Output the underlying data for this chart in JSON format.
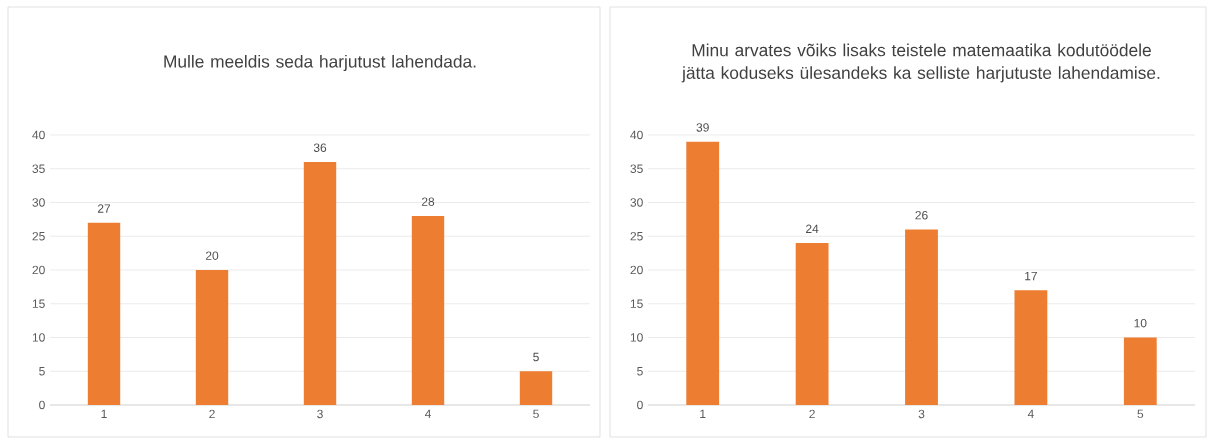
{
  "chart_data": [
    {
      "type": "bar",
      "title": "Mulle meeldis seda harjutust lahendada.",
      "categories": [
        "1",
        "2",
        "3",
        "4",
        "5"
      ],
      "values": [
        27,
        20,
        36,
        28,
        5
      ],
      "color": "#ed7d31",
      "ylim": [
        0,
        40
      ],
      "yticks": [
        0,
        5,
        10,
        15,
        20,
        25,
        30,
        35,
        40
      ],
      "grid": "y",
      "data_labels": true
    },
    {
      "type": "bar",
      "title": "Minu arvates võiks lisaks teistele matemaatika kodutöödele jätta koduseks ülesandeks ka selliste harjutuste lahendamise.",
      "categories": [
        "1",
        "2",
        "3",
        "4",
        "5"
      ],
      "values": [
        39,
        24,
        26,
        17,
        10
      ],
      "color": "#ed7d31",
      "ylim": [
        0,
        40
      ],
      "yticks": [
        0,
        5,
        10,
        15,
        20,
        25,
        30,
        35,
        40
      ],
      "grid": "y",
      "data_labels": true
    }
  ]
}
